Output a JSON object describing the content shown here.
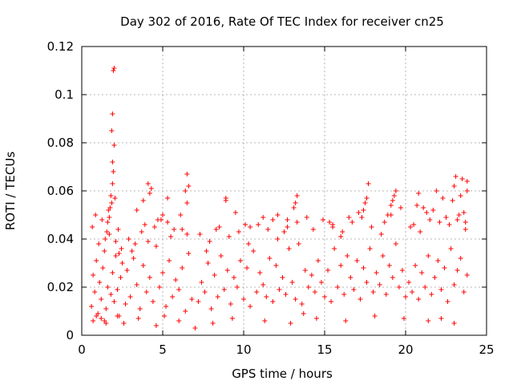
{
  "chart_data": {
    "type": "scatter",
    "title": "Day 302 of 2016, Rate Of TEC Index for receiver cn25",
    "xlabel": "GPS time / hours",
    "ylabel": "ROTI / TECUs",
    "xlim": [
      0,
      25
    ],
    "ylim": [
      0,
      0.12
    ],
    "xticks": [
      0,
      5,
      10,
      15,
      20,
      25
    ],
    "xtick_labels": [
      "0",
      "5",
      "10",
      "15",
      "20",
      "25"
    ],
    "yticks": [
      0,
      0.02,
      0.04,
      0.06,
      0.08,
      0.1,
      0.12
    ],
    "ytick_labels": [
      "0",
      "0.02",
      "0.04",
      "0.06",
      "0.08",
      "0.1",
      "0.12"
    ],
    "grid": true,
    "marker": "plus",
    "series": [
      {
        "name": "ROTI",
        "color": "#ff0000",
        "x": [
          0.6,
          0.7,
          0.8,
          0.9,
          1.0,
          1.1,
          1.2,
          1.3,
          1.4,
          1.5,
          1.6,
          1.7,
          1.8,
          1.9,
          2.0,
          2.1,
          2.2,
          2.3,
          2.4,
          2.5,
          0.65,
          0.85,
          1.05,
          1.25,
          1.45,
          1.65,
          1.85,
          2.05,
          2.25,
          2.45,
          1.9,
          1.95,
          2.0,
          1.85,
          1.9,
          1.95,
          2.0,
          1.8,
          1.9,
          1.7,
          1.6,
          1.55,
          1.75,
          2.1,
          2.3,
          0.7,
          1.2,
          1.5,
          2.7,
          2.8,
          3.0,
          3.2,
          3.4,
          3.6,
          3.8,
          4.0,
          4.2,
          4.4,
          4.6,
          4.8,
          5.0,
          5.2,
          5.4,
          5.6,
          5.8,
          6.0,
          6.2,
          6.4,
          6.6,
          6.8,
          2.9,
          3.3,
          3.7,
          4.1,
          4.5,
          4.9,
          5.3,
          5.7,
          6.1,
          6.5,
          3.4,
          3.8,
          4.2,
          4.1,
          4.3,
          5.0,
          5.3,
          6.4,
          6.5,
          6.6,
          6.5,
          4.7,
          3.1,
          3.9,
          5.5,
          6.2,
          2.6,
          7.2,
          7.4,
          7.6,
          7.8,
          8.0,
          8.2,
          8.4,
          8.6,
          8.8,
          9.0,
          9.2,
          9.4,
          9.6,
          9.8,
          10.0,
          10.2,
          10.4,
          10.6,
          10.8,
          11.0,
          11.2,
          11.4,
          11.6,
          11.8,
          12.0,
          12.2,
          12.4,
          12.6,
          12.8,
          13.0,
          13.2,
          13.4,
          13.6,
          13.8,
          14.0,
          7.3,
          7.9,
          8.5,
          9.1,
          9.7,
          10.3,
          10.9,
          11.5,
          12.1,
          12.7,
          13.3,
          13.9,
          8.9,
          8.9,
          9.5,
          10.4,
          11.2,
          11.8,
          12.1,
          12.7,
          13.1,
          13.2,
          13.3,
          12.5,
          8.3,
          10.1,
          7.7,
          14.2,
          14.4,
          14.6,
          14.8,
          15.0,
          15.2,
          15.4,
          15.6,
          15.8,
          16.0,
          16.2,
          16.4,
          16.6,
          16.8,
          17.0,
          17.2,
          17.4,
          17.6,
          17.8,
          18.0,
          18.2,
          18.4,
          18.6,
          18.8,
          19.0,
          19.2,
          19.4,
          19.6,
          19.8,
          20.0,
          14.3,
          14.9,
          15.5,
          16.1,
          16.7,
          17.3,
          17.9,
          18.5,
          19.1,
          19.7,
          15.3,
          15.5,
          16.5,
          17.1,
          17.5,
          17.6,
          17.7,
          18.7,
          18.9,
          19.2,
          19.3,
          19.4,
          19.1,
          17.4,
          16.0,
          20.2,
          20.4,
          20.6,
          20.8,
          21.0,
          21.2,
          21.4,
          21.6,
          21.8,
          22.0,
          22.2,
          22.4,
          22.6,
          22.8,
          23.0,
          23.2,
          23.4,
          23.6,
          23.8,
          20.3,
          20.9,
          21.5,
          22.1,
          22.7,
          23.3,
          23.7,
          20.7,
          20.8,
          21.3,
          21.7,
          21.9,
          22.5,
          22.9,
          23.0,
          23.1,
          23.4,
          23.5,
          23.6,
          23.7,
          23.8,
          23.8,
          22.3,
          20.5,
          21.1,
          23.2,
          0.9,
          1.4,
          3.5,
          6.0,
          8.1,
          9.3,
          11.3,
          12.9,
          14.5,
          16.3,
          18.1,
          19.9,
          21.4,
          22.2,
          23.0,
          5.1,
          13.7,
          4.6,
          2.2,
          7.0
        ],
        "y": [
          0.012,
          0.025,
          0.018,
          0.031,
          0.009,
          0.022,
          0.015,
          0.028,
          0.035,
          0.011,
          0.02,
          0.042,
          0.017,
          0.026,
          0.014,
          0.033,
          0.019,
          0.008,
          0.024,
          0.03,
          0.045,
          0.05,
          0.038,
          0.048,
          0.04,
          0.052,
          0.055,
          0.057,
          0.044,
          0.036,
          0.072,
          0.068,
          0.079,
          0.085,
          0.092,
          0.11,
          0.111,
          0.058,
          0.063,
          0.049,
          0.047,
          0.043,
          0.053,
          0.039,
          0.034,
          0.006,
          0.007,
          0.005,
          0.013,
          0.027,
          0.016,
          0.032,
          0.021,
          0.011,
          0.029,
          0.018,
          0.024,
          0.014,
          0.037,
          0.02,
          0.026,
          0.012,
          0.031,
          0.016,
          0.023,
          0.019,
          0.028,
          0.01,
          0.034,
          0.015,
          0.04,
          0.038,
          0.043,
          0.039,
          0.045,
          0.048,
          0.047,
          0.044,
          0.05,
          0.042,
          0.052,
          0.056,
          0.059,
          0.063,
          0.061,
          0.05,
          0.057,
          0.06,
          0.067,
          0.062,
          0.055,
          0.048,
          0.035,
          0.046,
          0.041,
          0.044,
          0.005,
          0.014,
          0.022,
          0.018,
          0.03,
          0.011,
          0.025,
          0.016,
          0.033,
          0.019,
          0.027,
          0.013,
          0.024,
          0.02,
          0.031,
          0.015,
          0.028,
          0.012,
          0.035,
          0.018,
          0.026,
          0.021,
          0.016,
          0.032,
          0.014,
          0.029,
          0.019,
          0.024,
          0.017,
          0.036,
          0.022,
          0.015,
          0.038,
          0.013,
          0.027,
          0.02,
          0.042,
          0.039,
          0.045,
          0.041,
          0.043,
          0.038,
          0.046,
          0.044,
          0.04,
          0.048,
          0.047,
          0.049,
          0.057,
          0.056,
          0.051,
          0.045,
          0.049,
          0.048,
          0.05,
          0.045,
          0.053,
          0.055,
          0.058,
          0.043,
          0.044,
          0.046,
          0.035,
          0.025,
          0.018,
          0.031,
          0.022,
          0.016,
          0.027,
          0.014,
          0.036,
          0.02,
          0.029,
          0.017,
          0.033,
          0.024,
          0.019,
          0.031,
          0.015,
          0.028,
          0.022,
          0.036,
          0.018,
          0.026,
          0.021,
          0.033,
          0.017,
          0.029,
          0.024,
          0.038,
          0.02,
          0.027,
          0.016,
          0.044,
          0.048,
          0.046,
          0.043,
          0.047,
          0.049,
          0.045,
          0.042,
          0.05,
          0.053,
          0.047,
          0.045,
          0.049,
          0.051,
          0.055,
          0.057,
          0.063,
          0.047,
          0.05,
          0.056,
          0.058,
          0.06,
          0.054,
          0.052,
          0.041,
          0.022,
          0.018,
          0.029,
          0.015,
          0.026,
          0.02,
          0.033,
          0.017,
          0.024,
          0.031,
          0.019,
          0.028,
          0.014,
          0.036,
          0.021,
          0.027,
          0.032,
          0.018,
          0.025,
          0.045,
          0.043,
          0.048,
          0.047,
          0.046,
          0.05,
          0.044,
          0.054,
          0.059,
          0.051,
          0.052,
          0.06,
          0.049,
          0.056,
          0.062,
          0.066,
          0.058,
          0.065,
          0.051,
          0.047,
          0.06,
          0.064,
          0.057,
          0.046,
          0.053,
          0.048,
          0.008,
          0.006,
          0.007,
          0.006,
          0.005,
          0.007,
          0.006,
          0.005,
          0.007,
          0.006,
          0.008,
          0.007,
          0.006,
          0.007,
          0.005,
          0.008,
          0.009,
          0.004,
          0.008,
          0.003
        ]
      }
    ]
  }
}
